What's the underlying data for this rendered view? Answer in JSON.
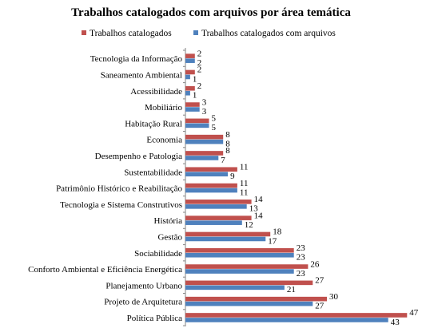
{
  "chart_data": {
    "type": "bar",
    "orientation": "horizontal",
    "title": "Trabalhos catalogados com arquivos por área temática",
    "legend_position": "top",
    "grid": false,
    "xlim": [
      0,
      50
    ],
    "categories": [
      "Tecnologia da Informação",
      "Saneamento Ambiental",
      "Acessibilidade",
      "Mobiliário",
      "Habitação Rural",
      "Economia",
      "Desempenho e Patologia",
      "Sustentabilidade",
      "Patrimônio Histórico e Reabilitação",
      "Tecnologia e Sistema Construtivos",
      "História",
      "Gestão",
      "Sociabilidade",
      "Conforto Ambiental  e Eficiência Energética",
      "Planejamento Urbano",
      "Projeto de Arquitetura",
      "Política Pública"
    ],
    "series": [
      {
        "name": "Trabalhos catalogados",
        "color": "#c0504d",
        "values": [
          2,
          2,
          2,
          3,
          5,
          8,
          8,
          11,
          11,
          14,
          14,
          18,
          23,
          26,
          27,
          30,
          47
        ]
      },
      {
        "name": "Trabalhos catalogados com arquivos",
        "color": "#4f81bd",
        "values": [
          2,
          1,
          1,
          3,
          5,
          8,
          7,
          9,
          11,
          13,
          12,
          17,
          23,
          23,
          21,
          27,
          43
        ]
      }
    ]
  }
}
